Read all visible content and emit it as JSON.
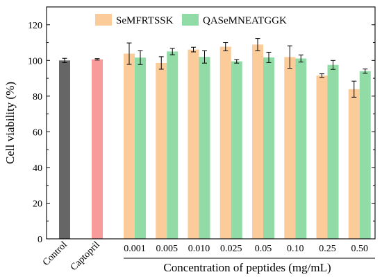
{
  "chart_data": {
    "type": "bar",
    "ylabel": "Cell viability (%)",
    "xlabel": "Concentration of peptides (mg/mL)",
    "ylim": [
      0,
      130
    ],
    "yticks": [
      0,
      20,
      40,
      60,
      80,
      100,
      120
    ],
    "grid": false,
    "legend_position": "top-center",
    "controls": [
      {
        "label": "Control",
        "value": 100.0,
        "error": 1.2,
        "color": "#666666"
      },
      {
        "label": "Captopril",
        "value": 100.6,
        "error": 0.4,
        "color": "#f79b9b"
      }
    ],
    "categories": [
      "0.001",
      "0.005",
      "0.010",
      "0.025",
      "0.05",
      "0.10",
      "0.25",
      "0.50"
    ],
    "series": [
      {
        "name": "SeMFRTSSK",
        "color": "#fccb9a",
        "values": [
          103.8,
          98.6,
          106.1,
          107.7,
          108.9,
          101.9,
          91.5,
          83.9
        ],
        "errors": [
          6.0,
          3.5,
          1.3,
          2.3,
          3.4,
          6.3,
          1.0,
          4.5
        ]
      },
      {
        "name": "QASeMNEATGGK",
        "color": "#90dba6",
        "values": [
          101.6,
          105.0,
          102.0,
          99.5,
          101.7,
          101.1,
          97.5,
          94.0
        ],
        "errors": [
          3.9,
          1.8,
          3.5,
          1.0,
          2.9,
          2.0,
          2.5,
          1.2
        ]
      }
    ]
  }
}
